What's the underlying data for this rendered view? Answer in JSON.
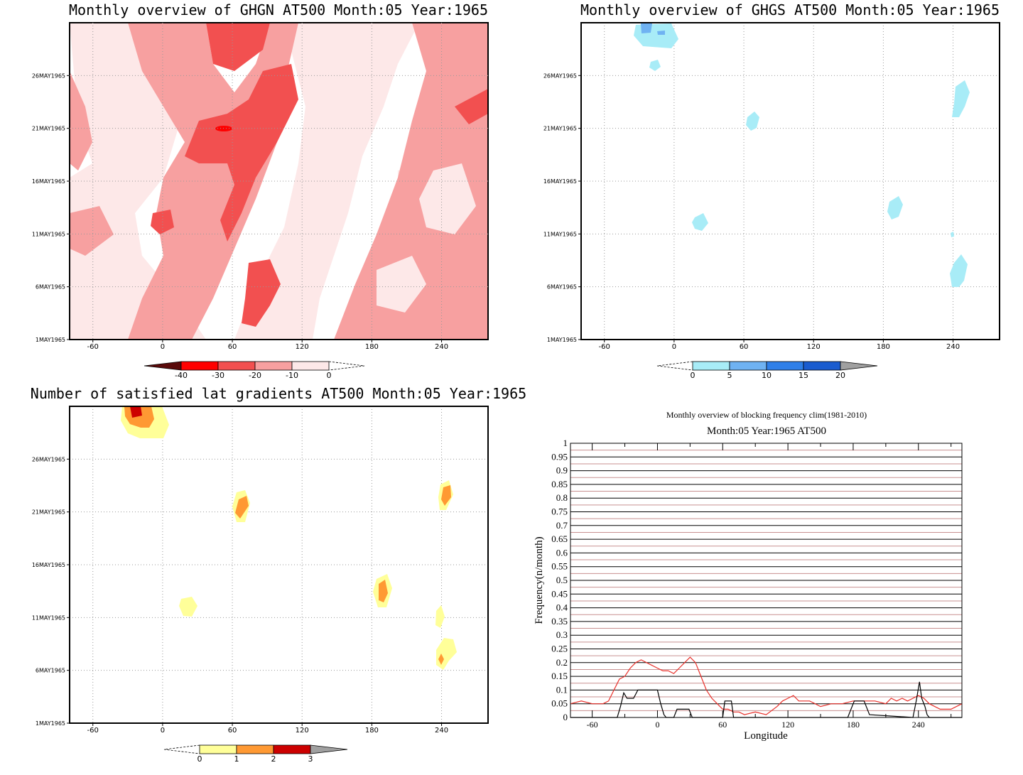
{
  "chart_data": [
    {
      "type": "heatmap",
      "title": "Monthly overview of GHGN AT500 Month:05 Year:1965",
      "x_ticks": [
        "-60",
        "0",
        "60",
        "120",
        "180",
        "240"
      ],
      "y_ticks": [
        "1MAY1965",
        "6MAY1965",
        "11MAY1965",
        "16MAY1965",
        "21MAY1965",
        "26MAY1965"
      ],
      "xlim": [
        -80,
        280
      ],
      "colorbar": {
        "labels": [
          "-40",
          "-30",
          "-20",
          "-10",
          "0"
        ],
        "colors": [
          "#5a0a0a",
          "#ff0000",
          "#f25050",
          "#f7a0a0",
          "#fde8e8"
        ]
      },
      "palette": {
        "d1": "#ffffff",
        "d2": "#fde8e8",
        "d3": "#f7a0a0",
        "d4": "#f25050"
      }
    },
    {
      "type": "heatmap",
      "title": "Monthly overview of GHGS AT500 Month:05 Year:1965",
      "x_ticks": [
        "-60",
        "0",
        "60",
        "120",
        "180",
        "240"
      ],
      "y_ticks": [
        "1MAY1965",
        "6MAY1965",
        "11MAY1965",
        "16MAY1965",
        "21MAY1965",
        "26MAY1965"
      ],
      "xlim": [
        -80,
        280
      ],
      "colorbar": {
        "labels": [
          "0",
          "5",
          "10",
          "15",
          "20"
        ],
        "colors": [
          "#a8ecf7",
          "#6fb2f2",
          "#2f7fe8",
          "#1a5ccf",
          "#a0a0a0"
        ]
      }
    },
    {
      "type": "heatmap",
      "title": "Number of satisfied lat gradients AT500 Month:05 Year:1965",
      "x_ticks": [
        "-60",
        "0",
        "60",
        "120",
        "180",
        "240"
      ],
      "y_ticks": [
        "1MAY1965",
        "6MAY1965",
        "11MAY1965",
        "16MAY1965",
        "21MAY1965",
        "26MAY1965"
      ],
      "xlim": [
        -80,
        280
      ],
      "colorbar": {
        "labels": [
          "0",
          "1",
          "2",
          "3"
        ],
        "colors": [
          "#ffff99",
          "#ff9933",
          "#cc0000",
          "#a0a0a0"
        ]
      }
    },
    {
      "type": "line",
      "title": "Monthly overview of blocking frequency clim(1981-2010)",
      "subtitle": "Month:05 Year:1965  AT500",
      "xlabel": "Longitude",
      "ylabel": "Frequency(n/month)",
      "xlim": [
        -80,
        280
      ],
      "ylim": [
        0,
        1
      ],
      "x_ticks": [
        "-60",
        "0",
        "60",
        "120",
        "180",
        "240"
      ],
      "y_ticks": [
        "0",
        "0.05",
        "0.1",
        "0.15",
        "0.2",
        "0.25",
        "0.3",
        "0.35",
        "0.4",
        "0.45",
        "0.5",
        "0.55",
        "0.6",
        "0.65",
        "0.7",
        "0.75",
        "0.8",
        "0.85",
        "0.9",
        "0.95",
        "1"
      ],
      "series": [
        {
          "color": "#e8302a",
          "x": [
            -80,
            -70,
            -60,
            -50,
            -45,
            -40,
            -35,
            -30,
            -25,
            -20,
            -15,
            -10,
            -5,
            0,
            5,
            10,
            15,
            20,
            25,
            30,
            35,
            40,
            45,
            50,
            55,
            60,
            65,
            70,
            75,
            80,
            90,
            100,
            110,
            115,
            120,
            125,
            130,
            140,
            150,
            160,
            170,
            180,
            190,
            200,
            210,
            215,
            220,
            225,
            230,
            235,
            240,
            245,
            250,
            260,
            270,
            280
          ],
          "y": [
            0.05,
            0.06,
            0.05,
            0.05,
            0.06,
            0.1,
            0.14,
            0.15,
            0.18,
            0.2,
            0.21,
            0.2,
            0.19,
            0.18,
            0.17,
            0.17,
            0.16,
            0.18,
            0.2,
            0.22,
            0.2,
            0.15,
            0.1,
            0.07,
            0.05,
            0.03,
            0.03,
            0.02,
            0.02,
            0.01,
            0.02,
            0.01,
            0.04,
            0.06,
            0.07,
            0.08,
            0.06,
            0.06,
            0.04,
            0.05,
            0.05,
            0.06,
            0.06,
            0.06,
            0.05,
            0.07,
            0.06,
            0.07,
            0.06,
            0.07,
            0.08,
            0.07,
            0.05,
            0.03,
            0.03,
            0.05
          ]
        },
        {
          "color": "#000000",
          "x": [
            -80,
            -40,
            -37,
            -34,
            -31,
            -28,
            -22,
            -18,
            -15,
            -10,
            -5,
            0,
            3,
            6,
            8,
            15,
            18,
            20,
            25,
            29,
            32,
            60,
            62,
            65,
            68,
            70,
            115,
            175,
            178,
            181,
            185,
            190,
            195,
            235,
            238,
            241,
            243,
            246,
            248,
            250,
            280
          ],
          "y": [
            0,
            0,
            0,
            0.04,
            0.09,
            0.07,
            0.07,
            0.1,
            0.1,
            0.1,
            0.1,
            0.1,
            0.05,
            0.01,
            0,
            0,
            0.03,
            0.03,
            0.03,
            0.03,
            0,
            0,
            0.06,
            0.06,
            0.06,
            0,
            0,
            0,
            0.03,
            0.06,
            0.06,
            0.06,
            0.01,
            0,
            0.06,
            0.13,
            0.07,
            0.04,
            0.01,
            0,
            0
          ]
        }
      ]
    }
  ]
}
